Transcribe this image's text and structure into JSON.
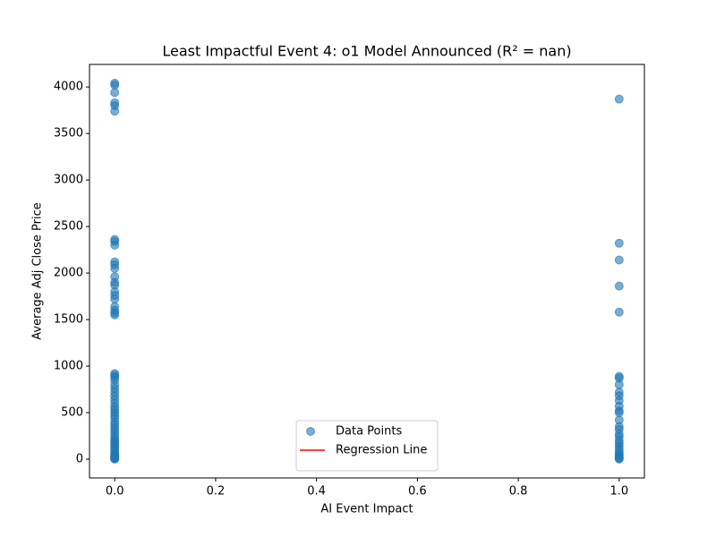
{
  "chart_data": {
    "type": "scatter",
    "title": "Least Impactful Event 4: o1 Model Announced (R² = nan)",
    "xlabel": "AI Event Impact",
    "ylabel": "Average Adj Close Price",
    "xlim": [
      -0.05,
      1.05
    ],
    "ylim": [
      -202,
      4242
    ],
    "xticks": [
      {
        "value": 0,
        "label": "0.0"
      },
      0.2,
      0.4,
      0.6,
      0.8,
      {
        "value": 1,
        "label": "1.0"
      }
    ],
    "yticks": [
      0,
      500,
      1000,
      1500,
      2000,
      2500,
      3000,
      3500,
      4000
    ],
    "grid": false,
    "legend": "lower center",
    "series": [
      {
        "name": "Data Points",
        "color": "#1f77b4",
        "style": "points",
        "x": [
          0,
          0,
          0,
          0,
          0,
          0,
          0,
          0,
          0,
          0,
          0,
          0,
          0,
          0,
          0,
          0,
          0,
          0,
          0,
          0,
          0,
          0,
          0,
          0,
          0,
          0,
          0,
          0,
          0,
          0,
          0,
          0,
          0,
          0,
          0,
          0,
          0,
          0,
          0,
          0,
          0,
          0,
          0,
          0,
          0,
          0,
          0,
          0,
          0,
          0,
          0,
          0,
          0,
          0,
          0,
          0,
          0,
          0,
          1,
          1,
          1,
          1,
          1,
          1,
          1,
          1,
          1,
          1,
          1,
          1,
          1,
          1,
          1,
          1,
          1,
          1,
          1,
          1,
          1,
          1,
          1,
          1,
          1,
          1,
          1,
          1,
          1
        ],
        "values": [
          4040,
          4020,
          3940,
          3830,
          3800,
          3740,
          2360,
          2340,
          2300,
          2120,
          2090,
          2050,
          1960,
          1900,
          1870,
          1800,
          1760,
          1720,
          1640,
          1600,
          1570,
          1550,
          920,
          900,
          880,
          850,
          800,
          760,
          720,
          680,
          640,
          600,
          560,
          530,
          500,
          470,
          440,
          400,
          370,
          340,
          310,
          280,
          250,
          220,
          200,
          180,
          160,
          140,
          120,
          100,
          80,
          60,
          40,
          30,
          20,
          10,
          5,
          0,
          3870,
          2320,
          2140,
          1860,
          1580,
          890,
          870,
          800,
          720,
          680,
          630,
          570,
          520,
          500,
          420,
          350,
          320,
          270,
          240,
          200,
          170,
          140,
          110,
          80,
          60,
          40,
          20,
          10,
          0
        ]
      },
      {
        "name": "Regression Line",
        "color": "#ff0000",
        "style": "line",
        "x": [
          0,
          1
        ],
        "values": [
          null,
          null
        ]
      }
    ]
  }
}
